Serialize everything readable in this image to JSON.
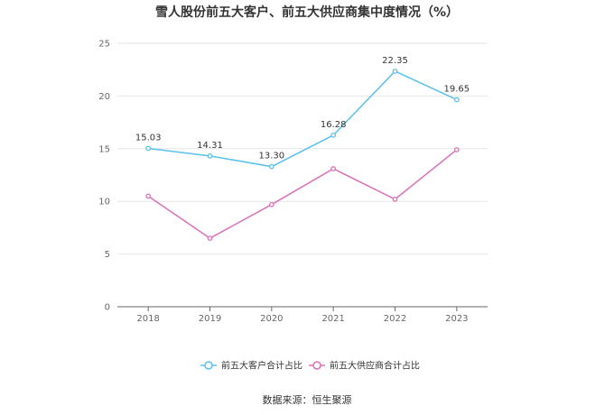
{
  "chart_data": {
    "type": "line",
    "title": "雪人股份前五大客户、前五大供应商集中度情况（%）",
    "categories": [
      "2018",
      "2019",
      "2020",
      "2021",
      "2022",
      "2023"
    ],
    "ylim": [
      0,
      25
    ],
    "yticks": [
      "0",
      "5",
      "10",
      "15",
      "20",
      "25"
    ],
    "grid": true,
    "legend_position": "bottom",
    "series": [
      {
        "name": "前五大客户合计占比",
        "color": "#5bc0eb",
        "values": [
          15.03,
          14.31,
          13.3,
          16.28,
          22.35,
          19.65
        ],
        "labels": [
          "15.03",
          "14.31",
          "13.30",
          "16.28",
          "22.35",
          "19.65"
        ]
      },
      {
        "name": "前五大供应商合计占比",
        "color": "#d870b8",
        "values": [
          10.5,
          6.5,
          9.7,
          13.1,
          10.2,
          14.9
        ],
        "labels": null
      }
    ],
    "source": "数据来源：恒生聚源"
  }
}
